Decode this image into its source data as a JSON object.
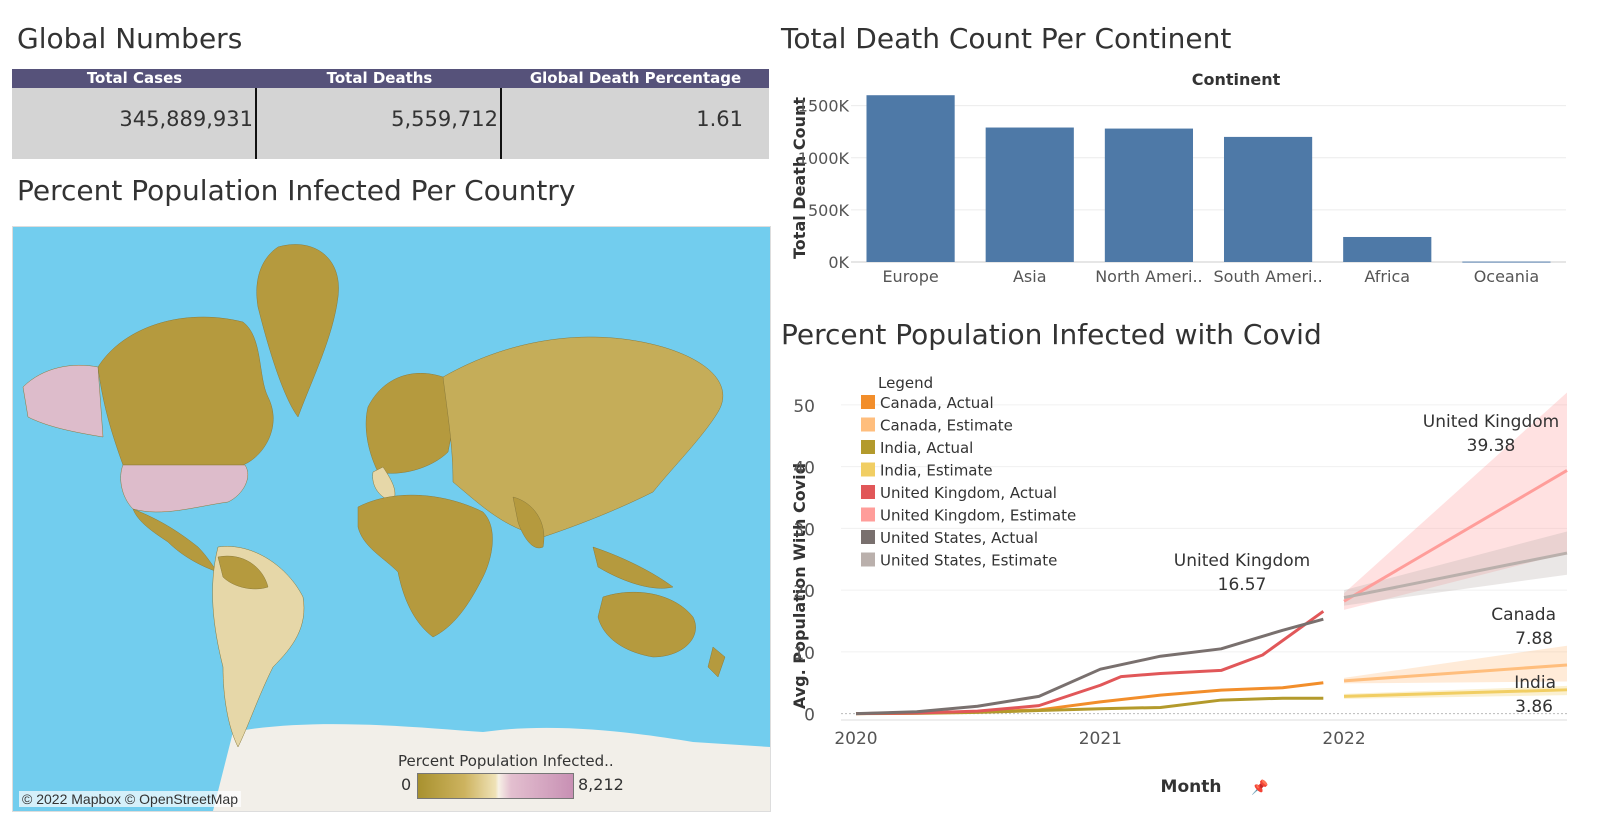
{
  "global_numbers": {
    "title": "Global Numbers",
    "headers": [
      "Total Cases",
      "Total Deaths",
      "Global Death Percentage"
    ],
    "values": [
      "345,889,931",
      "5,559,712",
      "1.61"
    ]
  },
  "map": {
    "title": "Percent Population Infected Per Country",
    "credit": "© 2022 Mapbox © OpenStreetMap",
    "legend_title": "Percent Population Infected..",
    "legend_min": "0",
    "legend_max": "8,212",
    "colors": {
      "ocean": "#72cdee",
      "land": "#b59a3e",
      "light": "#e6d7a8",
      "pink": "#ddbccb"
    }
  },
  "chart_data": [
    {
      "type": "bar",
      "title": "Total Death Count Per Continent",
      "header": "Continent",
      "ylabel": "Total Death Count",
      "categories": [
        "Europe",
        "Asia",
        "North Ameri..",
        "South Ameri..",
        "Africa",
        "Oceania"
      ],
      "values": [
        1600000,
        1290000,
        1280000,
        1200000,
        240000,
        4000
      ],
      "ylim": [
        0,
        1650000
      ],
      "yticks": [
        0,
        500000,
        1000000,
        1500000
      ],
      "ytick_labels": [
        "0K",
        "500K",
        "1000K",
        "1500K"
      ],
      "color": "#4e79a7",
      "grid": true
    },
    {
      "type": "line",
      "title": "Percent Population Infected with Covid",
      "xlabel": "Month",
      "ylabel": "Avg. Population With Covid",
      "ylim": [
        -2,
        55
      ],
      "yticks": [
        0,
        10,
        20,
        30,
        40,
        50
      ],
      "xticks": [
        "2020",
        "2021",
        "2022"
      ],
      "legend_title": "Legend",
      "legend_placement": "top-left",
      "series": [
        {
          "name": "Canada, Actual",
          "color": "#f28e2b",
          "x": [
            "2020-01",
            "2020-04",
            "2020-07",
            "2020-10",
            "2021-01",
            "2021-04",
            "2021-07",
            "2021-10",
            "2021-12"
          ],
          "values": [
            0,
            0.1,
            0.3,
            0.6,
            1.9,
            3.0,
            3.8,
            4.2,
            5.0
          ]
        },
        {
          "name": "Canada, Estimate",
          "color": "#ffbe7d",
          "x": [
            "2022-01",
            "2022-12"
          ],
          "values": [
            5.3,
            7.88
          ],
          "band_upper": [
            5.8,
            11.0
          ],
          "band_lower": [
            4.9,
            5.2
          ]
        },
        {
          "name": "India, Actual",
          "color": "#b39a2c",
          "x": [
            "2020-01",
            "2020-04",
            "2020-07",
            "2020-10",
            "2021-01",
            "2021-04",
            "2021-07",
            "2021-10",
            "2021-12"
          ],
          "values": [
            0,
            0.05,
            0.2,
            0.5,
            0.8,
            1.0,
            2.2,
            2.5,
            2.5
          ]
        },
        {
          "name": "India, Estimate",
          "color": "#f1ce63",
          "x": [
            "2022-01",
            "2022-12"
          ],
          "values": [
            2.8,
            3.86
          ],
          "band_upper": [
            3.2,
            4.5
          ],
          "band_lower": [
            2.4,
            3.0
          ]
        },
        {
          "name": "United Kingdom, Actual",
          "color": "#e15759",
          "x": [
            "2020-01",
            "2020-04",
            "2020-07",
            "2020-10",
            "2021-01",
            "2021-02",
            "2021-04",
            "2021-07",
            "2021-09",
            "2021-12"
          ],
          "values": [
            0,
            0.1,
            0.4,
            1.3,
            4.6,
            6.0,
            6.5,
            7.0,
            9.5,
            16.57
          ]
        },
        {
          "name": "United Kingdom, Estimate",
          "color": "#ff9d9a",
          "x": [
            "2022-01",
            "2022-12"
          ],
          "values": [
            18.2,
            39.38
          ],
          "band_upper": [
            19.5,
            52.0
          ],
          "band_lower": [
            16.8,
            26.0
          ]
        },
        {
          "name": "United States, Actual",
          "color": "#79706e",
          "x": [
            "2020-01",
            "2020-04",
            "2020-07",
            "2020-10",
            "2021-01",
            "2021-04",
            "2021-07",
            "2021-10",
            "2021-12"
          ],
          "values": [
            0,
            0.3,
            1.2,
            2.8,
            7.2,
            9.3,
            10.5,
            13.5,
            15.3
          ]
        },
        {
          "name": "United States, Estimate",
          "color": "#bab0ac",
          "x": [
            "2022-01",
            "2022-12"
          ],
          "values": [
            18.8,
            26.0
          ],
          "band_upper": [
            20.0,
            29.5
          ],
          "band_lower": [
            17.5,
            22.5
          ]
        }
      ],
      "annotations": [
        {
          "label": "United Kingdom",
          "value": "16.57"
        },
        {
          "label": "United Kingdom",
          "value": "39.38"
        },
        {
          "label": "Canada",
          "value": "7.88"
        },
        {
          "label": "India",
          "value": "3.86"
        }
      ]
    }
  ]
}
